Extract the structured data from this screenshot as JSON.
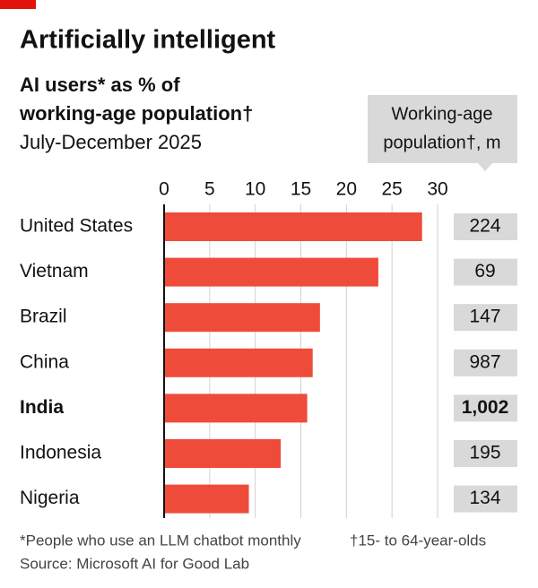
{
  "chart_data": {
    "type": "bar",
    "orientation": "horizontal",
    "title": "Artificially intelligent",
    "subtitle": [
      "AI users* as % of",
      "working-age population†"
    ],
    "date": "July-December 2025",
    "categories": [
      "United States",
      "Vietnam",
      "Brazil",
      "China",
      "India",
      "Indonesia",
      "Nigeria"
    ],
    "values": [
      28.3,
      23.5,
      17.1,
      16.3,
      15.7,
      12.8,
      9.3
    ],
    "color": "#ef4b3a",
    "highlight": "India",
    "xlim": [
      0,
      30
    ],
    "xticks": [
      0,
      5,
      10,
      15,
      20,
      25,
      30
    ],
    "grid": true,
    "population": {
      "header": [
        "Working-age",
        "population†, m"
      ],
      "values": [
        224,
        69,
        147,
        987,
        1002,
        195,
        134
      ],
      "value_labels": [
        "224",
        "69",
        "147",
        "987",
        "1,002",
        "195",
        "134"
      ]
    },
    "footnotes": [
      "*People who use an LLM chatbot monthly",
      "†15- to 64-year-olds"
    ],
    "source": "Source: Microsoft AI for Good Lab"
  }
}
